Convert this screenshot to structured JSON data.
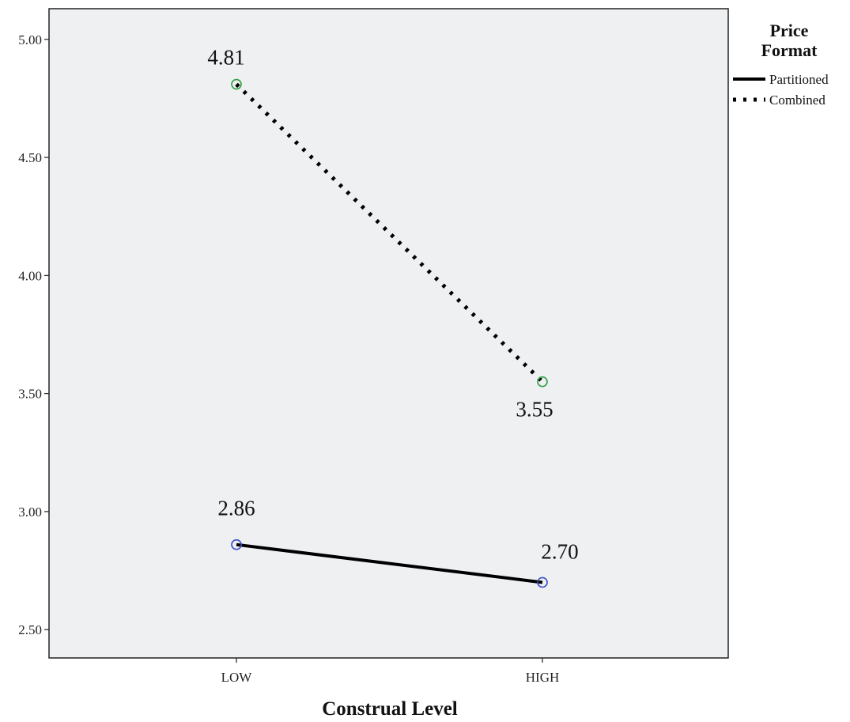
{
  "chart_data": {
    "type": "line",
    "categories": [
      "LOW",
      "HIGH"
    ],
    "xlabel": "Construal Level",
    "ylabel": "",
    "ylim": [
      2.38,
      5.13
    ],
    "yticks": [
      "2.50",
      "3.00",
      "3.50",
      "4.00",
      "4.50",
      "5.00"
    ],
    "grid": false,
    "legend": {
      "title_line1": "Price",
      "title_line2": "Format",
      "placement": "right"
    },
    "series": [
      {
        "name": "Partitioned",
        "values": [
          2.86,
          2.7
        ],
        "labels": [
          "2.86",
          "2.70"
        ],
        "line_style": "solid",
        "marker_color": "#3a4fc4"
      },
      {
        "name": "Combined",
        "values": [
          4.81,
          3.55
        ],
        "labels": [
          "4.81",
          "3.55"
        ],
        "line_style": "dotted",
        "marker_color": "#2ea043"
      }
    ],
    "plot_background": "#eff0f2"
  }
}
